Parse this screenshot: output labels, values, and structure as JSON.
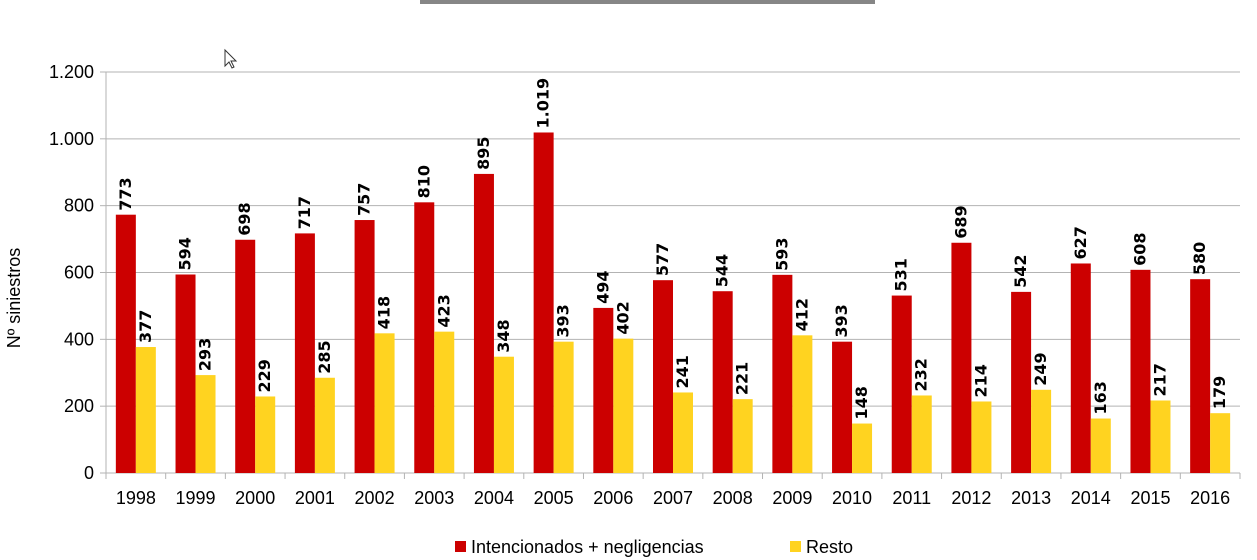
{
  "chart_data": {
    "type": "bar",
    "title": "",
    "xlabel": "",
    "ylabel": "Nº siniestros",
    "ylim": [
      0,
      1200
    ],
    "yticks": [
      0,
      200,
      400,
      600,
      800,
      1000,
      1200
    ],
    "ytick_labels": [
      "0",
      "200",
      "400",
      "600",
      "800",
      "1.000",
      "1.200"
    ],
    "grid": true,
    "legend_position": "bottom",
    "categories": [
      "1998",
      "1999",
      "2000",
      "2001",
      "2002",
      "2003",
      "2004",
      "2005",
      "2006",
      "2007",
      "2008",
      "2009",
      "2010",
      "2011",
      "2012",
      "2013",
      "2014",
      "2015",
      "2016"
    ],
    "series": [
      {
        "name": "Intencionados + negligencias",
        "color": "#cc0000",
        "values": [
          773,
          594,
          698,
          717,
          757,
          810,
          895,
          1019,
          494,
          577,
          544,
          593,
          393,
          531,
          689,
          542,
          627,
          608,
          580
        ],
        "labels": [
          "773",
          "594",
          "698",
          "717",
          "757",
          "810",
          "895",
          "1.019",
          "494",
          "577",
          "544",
          "593",
          "393",
          "531",
          "689",
          "542",
          "627",
          "608",
          "580"
        ]
      },
      {
        "name": "Resto",
        "color": "#ffd320",
        "values": [
          377,
          293,
          229,
          285,
          418,
          423,
          348,
          393,
          402,
          241,
          221,
          412,
          148,
          232,
          214,
          249,
          163,
          217,
          179
        ],
        "labels": [
          "377",
          "293",
          "229",
          "285",
          "418",
          "423",
          "348",
          "393",
          "402",
          "241",
          "221",
          "412",
          "148",
          "232",
          "214",
          "249",
          "163",
          "217",
          "179"
        ]
      }
    ]
  }
}
